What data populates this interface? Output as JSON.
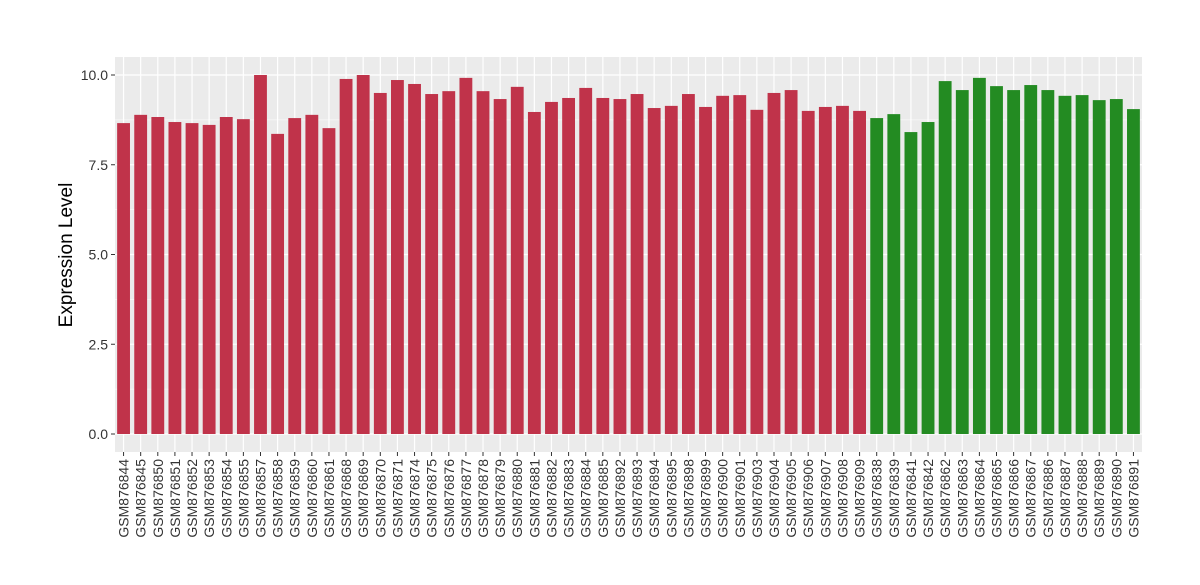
{
  "chart_data": {
    "type": "bar",
    "title": "",
    "xlabel": "",
    "ylabel": "Expression Level",
    "ylim": [
      0,
      10.5
    ],
    "yticks": [
      "0.0",
      "2.5",
      "5.0",
      "7.5",
      "10.0"
    ],
    "grid": true,
    "legend": "none",
    "colors": {
      "group1": "#C0334A",
      "group2": "#238B22",
      "panel": "#EBEBEB",
      "grid": "#FFFFFF"
    },
    "categories": [
      "GSM876844",
      "GSM876845",
      "GSM876850",
      "GSM876851",
      "GSM876852",
      "GSM876853",
      "GSM876854",
      "GSM876855",
      "GSM876857",
      "GSM876858",
      "GSM876859",
      "GSM876860",
      "GSM876861",
      "GSM876868",
      "GSM876869",
      "GSM876870",
      "GSM876871",
      "GSM876874",
      "GSM876875",
      "GSM876876",
      "GSM876877",
      "GSM876878",
      "GSM876879",
      "GSM876880",
      "GSM876881",
      "GSM876882",
      "GSM876883",
      "GSM876884",
      "GSM876885",
      "GSM876892",
      "GSM876893",
      "GSM876894",
      "GSM876895",
      "GSM876898",
      "GSM876899",
      "GSM876900",
      "GSM876901",
      "GSM876903",
      "GSM876904",
      "GSM876905",
      "GSM876906",
      "GSM876907",
      "GSM876908",
      "GSM876909",
      "GSM876838",
      "GSM876839",
      "GSM876841",
      "GSM876842",
      "GSM876862",
      "GSM876863",
      "GSM876864",
      "GSM876865",
      "GSM876866",
      "GSM876867",
      "GSM876886",
      "GSM876887",
      "GSM876888",
      "GSM876889",
      "GSM876890",
      "GSM876891"
    ],
    "values": [
      8.66,
      8.89,
      8.83,
      8.69,
      8.66,
      8.61,
      8.83,
      8.77,
      10.0,
      8.36,
      8.8,
      8.89,
      8.52,
      9.89,
      10.0,
      9.5,
      9.86,
      9.75,
      9.47,
      9.55,
      9.92,
      9.55,
      9.33,
      9.67,
      8.97,
      9.25,
      9.36,
      9.64,
      9.36,
      9.33,
      9.47,
      9.08,
      9.14,
      9.47,
      9.11,
      9.42,
      9.44,
      9.03,
      9.5,
      9.58,
      9.0,
      9.11,
      9.14,
      9.0,
      8.8,
      8.91,
      8.41,
      8.69,
      9.83,
      9.58,
      9.92,
      9.69,
      9.58,
      9.72,
      9.58,
      9.42,
      9.44,
      9.3,
      9.33,
      9.05
    ],
    "groups": [
      "group1",
      "group1",
      "group1",
      "group1",
      "group1",
      "group1",
      "group1",
      "group1",
      "group1",
      "group1",
      "group1",
      "group1",
      "group1",
      "group1",
      "group1",
      "group1",
      "group1",
      "group1",
      "group1",
      "group1",
      "group1",
      "group1",
      "group1",
      "group1",
      "group1",
      "group1",
      "group1",
      "group1",
      "group1",
      "group1",
      "group1",
      "group1",
      "group1",
      "group1",
      "group1",
      "group1",
      "group1",
      "group1",
      "group1",
      "group1",
      "group1",
      "group1",
      "group1",
      "group1",
      "group2",
      "group2",
      "group2",
      "group2",
      "group2",
      "group2",
      "group2",
      "group2",
      "group2",
      "group2",
      "group2",
      "group2",
      "group2",
      "group2",
      "group2",
      "group2"
    ]
  }
}
